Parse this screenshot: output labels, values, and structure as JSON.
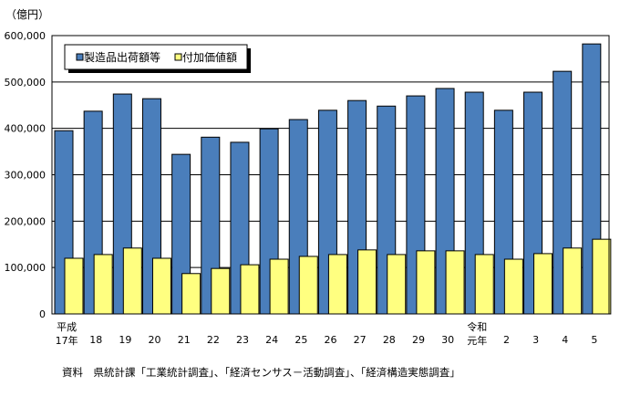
{
  "chart_data": {
    "type": "bar",
    "unit_label": "（億円）",
    "categories": [
      "平成\n17年",
      "18",
      "19",
      "20",
      "21",
      "22",
      "23",
      "24",
      "25",
      "26",
      "27",
      "28",
      "29",
      "30",
      "令和\n元年",
      "2",
      "3",
      "4",
      "5"
    ],
    "series": [
      {
        "name": "製造品出荷額等",
        "color": "#4a7ebb",
        "values": [
          395000,
          437000,
          474000,
          464000,
          344000,
          381000,
          370000,
          399000,
          419000,
          439000,
          460000,
          448000,
          470000,
          486000,
          478000,
          439000,
          478000,
          523000,
          582000
        ]
      },
      {
        "name": "付加価値額",
        "color": "#ffff80",
        "values": [
          120000,
          128000,
          142000,
          120000,
          87000,
          98000,
          106000,
          118000,
          124000,
          128000,
          138000,
          128000,
          136000,
          136000,
          128000,
          118000,
          130000,
          142000,
          161000
        ]
      }
    ],
    "ylim": [
      0,
      600000
    ],
    "yticks": [
      "0",
      "100,000",
      "200,000",
      "300,000",
      "400,000",
      "500,000",
      "600,000"
    ],
    "grid": true,
    "legend": "top-left",
    "source": "資料　県統計課「工業統計調査」、「経済センサス－活動調査」、「経済構造実態調査」"
  }
}
